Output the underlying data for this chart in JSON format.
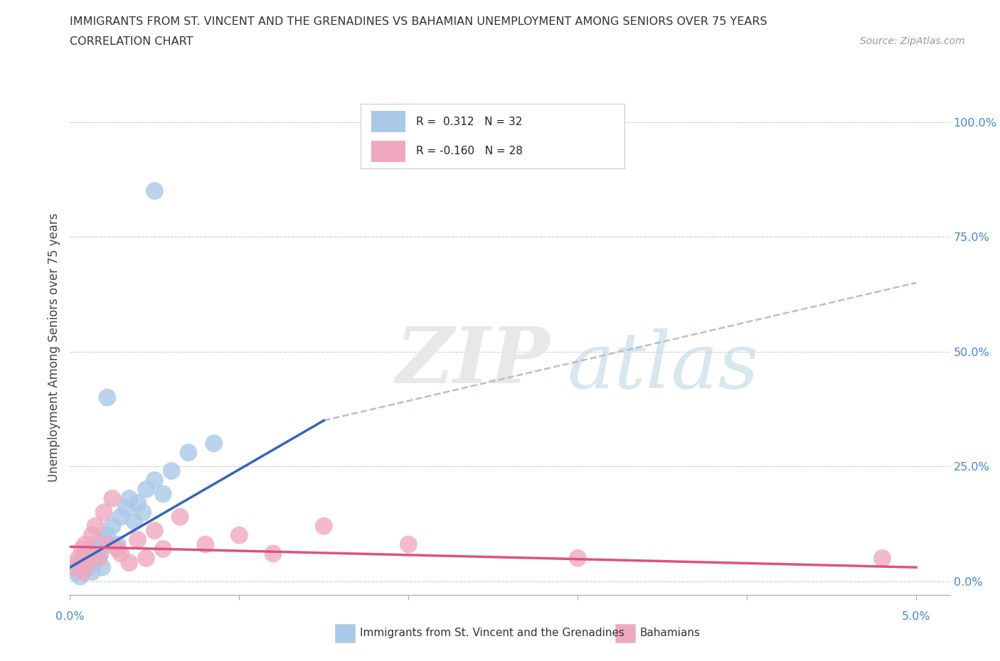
{
  "title_line1": "IMMIGRANTS FROM ST. VINCENT AND THE GRENADINES VS BAHAMIAN UNEMPLOYMENT AMONG SENIORS OVER 75 YEARS",
  "title_line2": "CORRELATION CHART",
  "source_text": "Source: ZipAtlas.com",
  "ylabel": "Unemployment Among Seniors over 75 years",
  "xlim": [
    0.0,
    5.2
  ],
  "ylim": [
    -3.0,
    105.0
  ],
  "yticks": [
    0,
    25,
    50,
    75,
    100
  ],
  "ytick_labels": [
    "0.0%",
    "25.0%",
    "50.0%",
    "75.0%",
    "100.0%"
  ],
  "blue_R": 0.312,
  "blue_N": 32,
  "pink_R": -0.16,
  "pink_N": 28,
  "blue_color": "#aac8e8",
  "pink_color": "#f0a8c0",
  "blue_line_color": "#3366bb",
  "pink_line_color": "#e05080",
  "dashed_line_color": "#aabbcc",
  "legend_label_blue": "Immigrants from St. Vincent and the Grenadines",
  "legend_label_pink": "Bahamians",
  "blue_x": [
    0.03,
    0.05,
    0.06,
    0.08,
    0.09,
    0.1,
    0.11,
    0.12,
    0.13,
    0.14,
    0.15,
    0.16,
    0.18,
    0.19,
    0.2,
    0.22,
    0.25,
    0.28,
    0.3,
    0.33,
    0.35,
    0.38,
    0.4,
    0.43,
    0.45,
    0.5,
    0.55,
    0.6,
    0.7,
    0.85,
    0.5,
    0.22
  ],
  "blue_y": [
    2,
    4,
    1,
    3,
    5,
    6,
    3,
    7,
    2,
    4,
    8,
    5,
    6,
    3,
    9,
    10,
    12,
    8,
    14,
    16,
    18,
    13,
    17,
    15,
    20,
    22,
    19,
    24,
    28,
    30,
    85,
    40
  ],
  "pink_x": [
    0.03,
    0.05,
    0.07,
    0.08,
    0.09,
    0.1,
    0.11,
    0.13,
    0.15,
    0.17,
    0.2,
    0.22,
    0.25,
    0.28,
    0.3,
    0.35,
    0.4,
    0.45,
    0.5,
    0.55,
    0.65,
    0.8,
    1.0,
    1.2,
    1.5,
    2.0,
    3.0,
    4.8
  ],
  "pink_y": [
    3,
    5,
    7,
    2,
    8,
    4,
    6,
    10,
    12,
    5,
    15,
    8,
    18,
    7,
    6,
    4,
    9,
    5,
    11,
    7,
    14,
    8,
    10,
    6,
    12,
    8,
    5,
    5
  ],
  "blue_line_x0": 0.0,
  "blue_line_y0": 3.0,
  "blue_line_x1": 1.5,
  "blue_line_y1": 35.0,
  "dashed_line_x0": 1.5,
  "dashed_line_y0": 35.0,
  "dashed_line_x1": 5.0,
  "dashed_line_y1": 65.0,
  "pink_line_x0": 0.0,
  "pink_line_y0": 7.5,
  "pink_line_x1": 5.0,
  "pink_line_y1": 3.0
}
